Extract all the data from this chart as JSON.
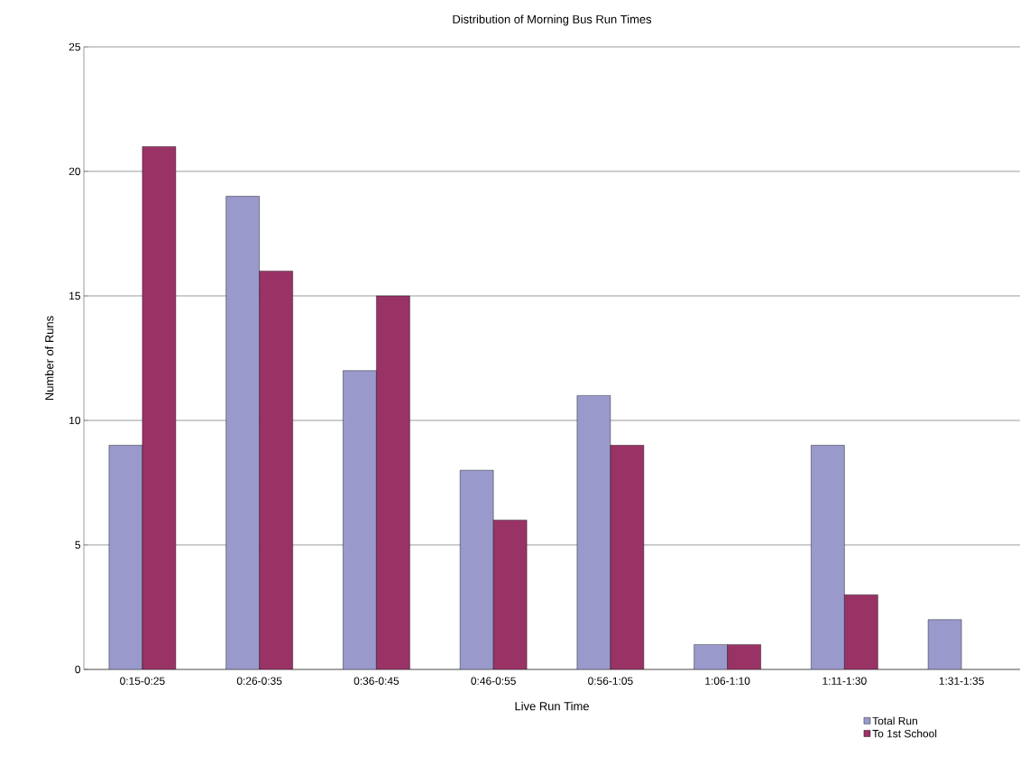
{
  "chart_data": {
    "type": "bar",
    "title": "Distribution of Morning Bus Run Times",
    "xlabel": "Live Run Time",
    "ylabel": "Number of Runs",
    "categories": [
      "0:15-0:25",
      "0:26-0:35",
      "0:36-0:45",
      "0:46-0:55",
      "0:56-1:05",
      "1:06-1:10",
      "1:11-1:30",
      "1:31-1:35"
    ],
    "series": [
      {
        "name": "Total Run",
        "color": "#9999cc",
        "values": [
          9,
          19,
          12,
          8,
          11,
          1,
          9,
          2
        ]
      },
      {
        "name": "To 1st School",
        "color": "#993366",
        "values": [
          21,
          16,
          15,
          6,
          9,
          1,
          3,
          null
        ]
      }
    ],
    "ylim": [
      0,
      25
    ],
    "yticks": [
      0,
      5,
      10,
      15,
      20,
      25
    ],
    "grid": "y",
    "legend": "bottom right"
  }
}
